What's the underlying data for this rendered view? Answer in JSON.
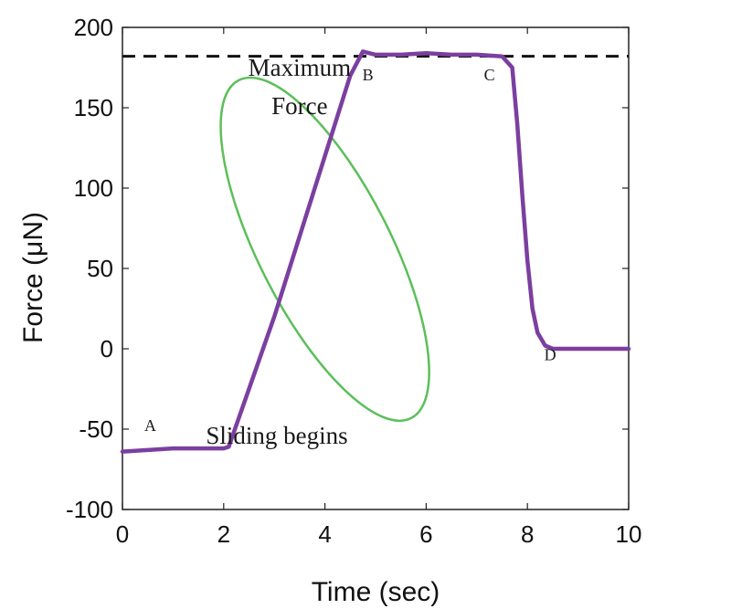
{
  "chart_data": {
    "type": "line",
    "title": "",
    "xlabel": "Time (sec)",
    "ylabel": "Force (μN)",
    "xlim": [
      0,
      10
    ],
    "ylim": [
      -100,
      200
    ],
    "xticks": [
      0,
      2,
      4,
      6,
      8,
      10
    ],
    "yticks": [
      -100,
      -50,
      0,
      50,
      100,
      150,
      200
    ],
    "grid": false,
    "legend": "none",
    "series": [
      {
        "color": "#7b3fa0",
        "x": [
          0,
          0.5,
          1.0,
          1.5,
          2.0,
          2.1,
          2.5,
          3.0,
          3.5,
          4.0,
          4.5,
          4.75,
          5.0,
          5.5,
          6.0,
          6.5,
          7.0,
          7.5,
          7.7,
          7.8,
          7.9,
          8.0,
          8.1,
          8.2,
          8.35,
          8.5,
          9.0,
          9.5,
          10.0
        ],
        "y": [
          -64,
          -63,
          -62,
          -62,
          -62,
          -61,
          -25,
          20,
          70,
          120,
          170,
          185,
          183,
          183,
          184,
          183,
          183,
          182,
          175,
          140,
          95,
          55,
          25,
          10,
          2,
          0,
          0,
          0,
          0
        ]
      }
    ],
    "reference_line": {
      "y": 182,
      "style": "dashed",
      "color": "#111111"
    },
    "annotations": [
      {
        "text": "Maximum",
        "x": 3.5,
        "y": 170
      },
      {
        "text": "Force",
        "x": 3.5,
        "y": 146
      },
      {
        "text": "A",
        "x": 0.55,
        "y": -51
      },
      {
        "text": "B",
        "x": 4.85,
        "y": 167
      },
      {
        "text": "C",
        "x": 7.25,
        "y": 167
      },
      {
        "text": "D",
        "x": 8.45,
        "y": -7
      },
      {
        "text": "Sliding begins",
        "x": 3.05,
        "y": -59
      }
    ],
    "highlight_ellipse": {
      "cx": 4.0,
      "cy": 62,
      "rx_data": 1.3,
      "ry_data": 118,
      "rotation_deg": -27,
      "color": "#5cbf5a"
    }
  }
}
